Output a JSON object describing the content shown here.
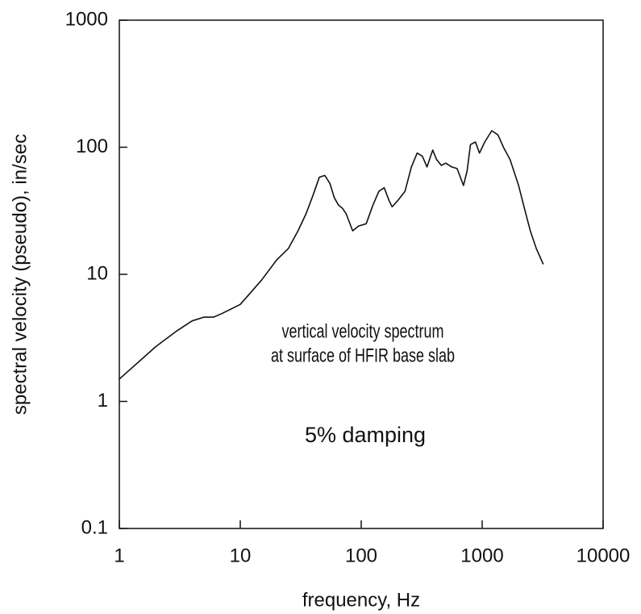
{
  "chart_data": {
    "type": "line",
    "xlabel": "frequency, Hz",
    "ylabel": "spectral velocity (pseudo), in/sec",
    "annotations": [
      "vertical velocity spectrum",
      "at surface of HFIR base slab",
      "5% damping"
    ],
    "xscale": "log",
    "yscale": "log",
    "xlim": [
      1,
      10000
    ],
    "ylim": [
      0.1,
      1000
    ],
    "xticks": [
      1,
      10,
      100,
      1000,
      10000
    ],
    "yticks": [
      0.1,
      1,
      10,
      100,
      1000
    ],
    "grid": false,
    "series": [
      {
        "color": "#111111",
        "x": [
          1,
          2,
          3,
          4,
          5,
          6,
          7,
          10,
          15,
          20,
          25,
          30,
          35,
          40,
          45,
          50,
          55,
          60,
          65,
          70,
          75,
          85,
          95,
          110,
          125,
          140,
          155,
          170,
          180,
          200,
          230,
          260,
          290,
          320,
          350,
          390,
          420,
          460,
          500,
          560,
          620,
          700,
          750,
          800,
          880,
          950,
          1050,
          1200,
          1350,
          1500,
          1700,
          2000,
          2200,
          2500,
          2800,
          3200
        ],
        "values": [
          1.5,
          2.7,
          3.6,
          4.3,
          4.6,
          4.6,
          4.9,
          5.8,
          9,
          13,
          16,
          22,
          30,
          42,
          58,
          60,
          52,
          40,
          35,
          33,
          30,
          22,
          24,
          25,
          35,
          45,
          48,
          38,
          34,
          38,
          45,
          70,
          90,
          85,
          70,
          95,
          80,
          72,
          75,
          70,
          68,
          50,
          65,
          105,
          110,
          90,
          110,
          135,
          125,
          100,
          80,
          50,
          35,
          22,
          16,
          12
        ]
      }
    ]
  }
}
